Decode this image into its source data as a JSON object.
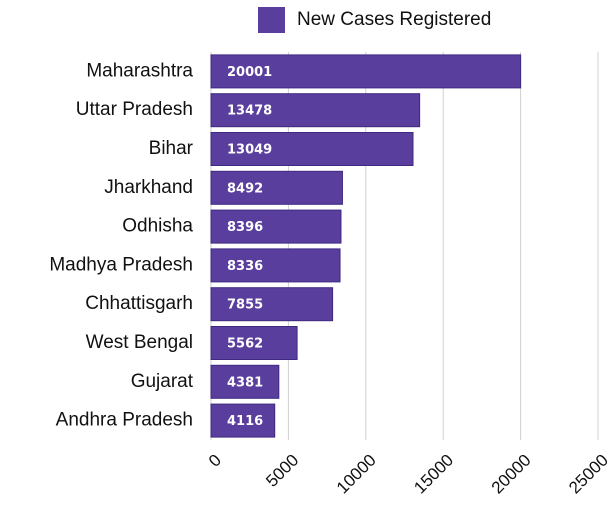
{
  "chart_data": {
    "type": "barh",
    "categories": [
      "Maharashtra",
      "Uttar Pradesh",
      "Bihar",
      "Jharkhand",
      "Odhisha",
      "Madhya Pradesh",
      "Chhattisgarh",
      "West Bengal",
      "Gujarat",
      "Andhra Pradesh"
    ],
    "series": [
      {
        "name": "New Cases Registered",
        "color": "#5a3e9e",
        "values": [
          20001,
          13478,
          13049,
          8492,
          8396,
          8336,
          7855,
          5562,
          4381,
          4116
        ]
      }
    ],
    "xlim": [
      0,
      25000
    ],
    "xticks": [
      0,
      5000,
      10000,
      15000,
      20000,
      25000
    ],
    "grid": true,
    "legend": "top",
    "data_labels": true
  }
}
